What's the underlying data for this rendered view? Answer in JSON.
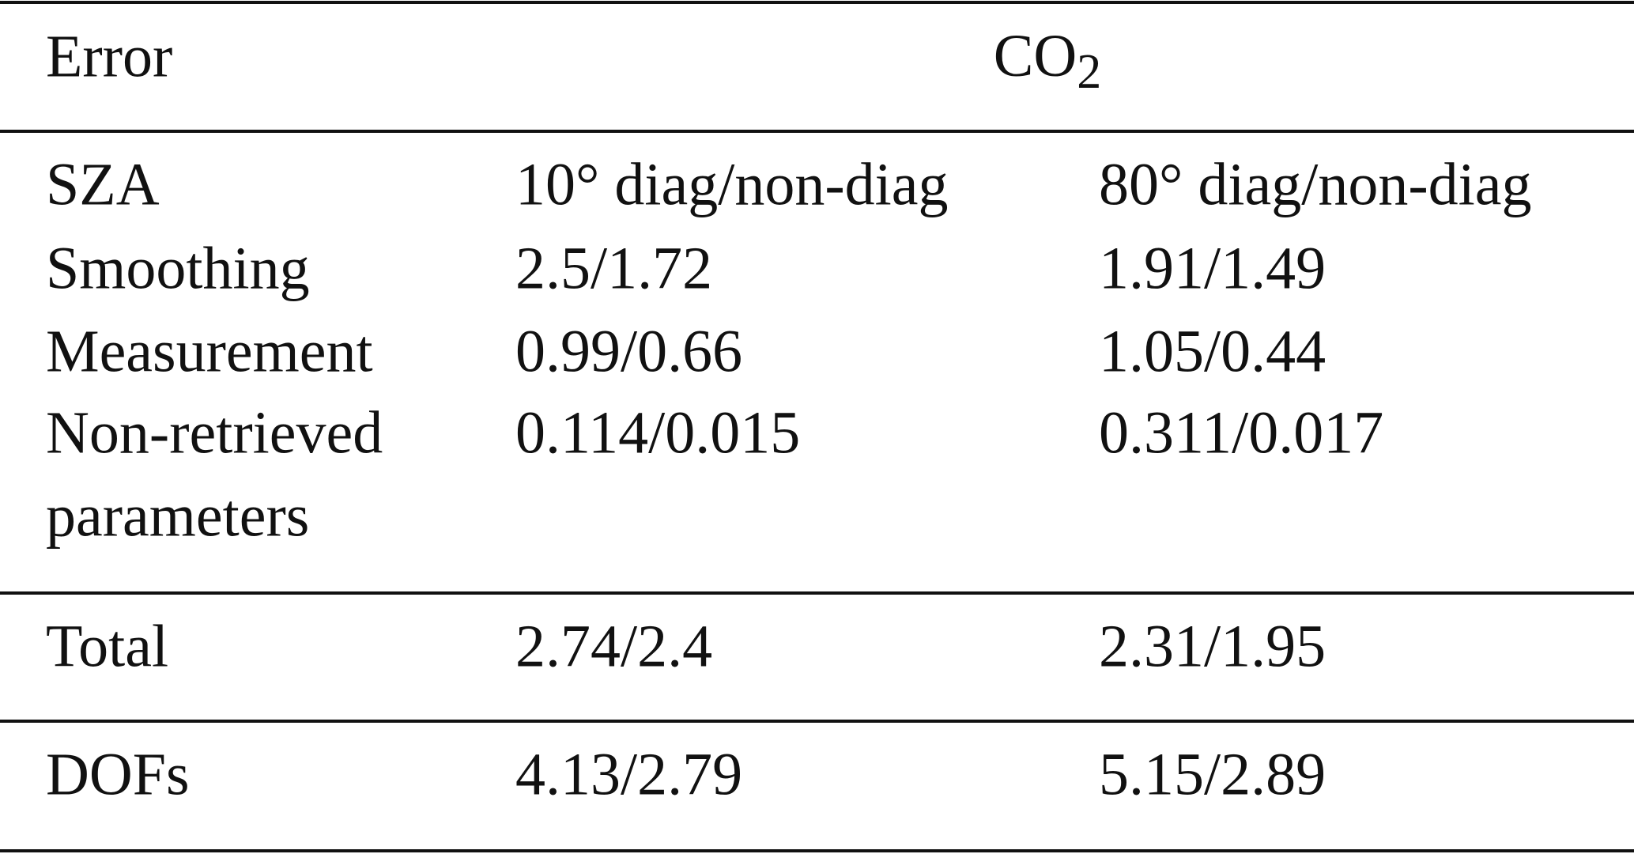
{
  "table": {
    "header": {
      "error": "Error",
      "species": "CO",
      "species_subscript": "2"
    },
    "rows": [
      [
        "SZA",
        "10° diag/non-diag",
        "80° diag/non-diag"
      ],
      [
        "Smoothing",
        "2.5/1.72",
        "1.91/1.49"
      ],
      [
        "Measurement",
        "0.99/0.66",
        "1.05/0.44"
      ],
      [
        [
          "Non-retrieved",
          "parameters"
        ],
        "0.114/0.015",
        "0.311/0.017"
      ],
      [
        "Total",
        "2.74/2.4",
        "2.31/1.95"
      ],
      [
        "DOFs",
        "4.13/2.79",
        "5.15/2.89"
      ]
    ]
  }
}
